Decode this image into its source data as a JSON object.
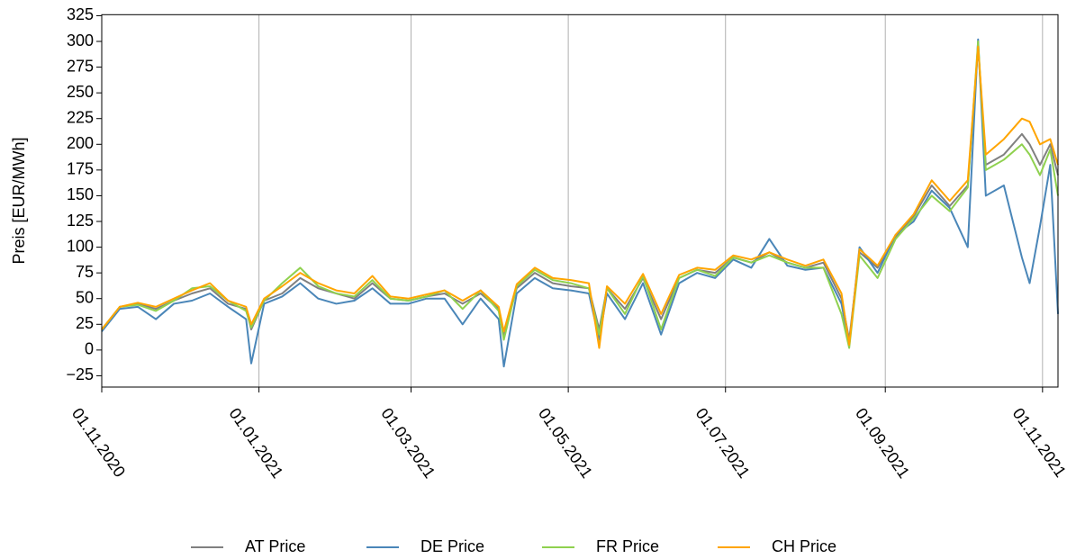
{
  "chart_data": {
    "type": "line",
    "y_label": "Preis [EUR/MWh]",
    "x": [
      "01.11.2020",
      "08.11.2020",
      "15.11.2020",
      "22.11.2020",
      "29.11.2020",
      "06.12.2020",
      "13.12.2020",
      "20.12.2020",
      "27.12.2020",
      "29.12.2020",
      "03.01.2021",
      "10.01.2021",
      "17.01.2021",
      "24.01.2021",
      "31.01.2021",
      "07.02.2021",
      "14.02.2021",
      "21.02.2021",
      "28.02.2021",
      "07.03.2021",
      "14.03.2021",
      "21.03.2021",
      "28.03.2021",
      "04.04.2021",
      "06.04.2021",
      "11.04.2021",
      "18.04.2021",
      "25.04.2021",
      "02.05.2021",
      "09.05.2021",
      "13.05.2021",
      "16.05.2021",
      "23.05.2021",
      "30.05.2021",
      "06.06.2021",
      "13.06.2021",
      "20.06.2021",
      "27.06.2021",
      "04.07.2021",
      "11.07.2021",
      "18.07.2021",
      "25.07.2021",
      "01.08.2021",
      "08.08.2021",
      "15.08.2021",
      "18.08.2021",
      "22.08.2021",
      "29.08.2021",
      "05.09.2021",
      "12.09.2021",
      "19.09.2021",
      "26.09.2021",
      "03.10.2021",
      "07.10.2021",
      "10.10.2021",
      "17.10.2021",
      "24.10.2021",
      "27.10.2021",
      "31.10.2021",
      "04.11.2021",
      "07.11.2021"
    ],
    "series": [
      {
        "name": "AT Price",
        "color": "#808080",
        "values": [
          20,
          42,
          45,
          40,
          48,
          55,
          60,
          45,
          40,
          20,
          48,
          55,
          70,
          60,
          55,
          50,
          65,
          50,
          48,
          52,
          55,
          45,
          55,
          40,
          15,
          60,
          75,
          65,
          62,
          60,
          20,
          60,
          40,
          70,
          30,
          70,
          78,
          75,
          90,
          85,
          95,
          85,
          80,
          85,
          50,
          10,
          95,
          80,
          110,
          130,
          160,
          140,
          160,
          295,
          180,
          190,
          210,
          200,
          180,
          200,
          170
        ]
      },
      {
        "name": "DE Price",
        "color": "#4a86b8",
        "values": [
          18,
          40,
          42,
          30,
          45,
          48,
          55,
          42,
          30,
          -13,
          45,
          52,
          65,
          50,
          45,
          48,
          60,
          45,
          45,
          50,
          50,
          25,
          50,
          30,
          -16,
          55,
          70,
          60,
          58,
          55,
          10,
          55,
          30,
          65,
          15,
          65,
          75,
          70,
          88,
          80,
          108,
          82,
          78,
          80,
          45,
          5,
          100,
          75,
          112,
          125,
          155,
          138,
          100,
          302,
          150,
          160,
          90,
          65,
          120,
          180,
          35
        ]
      },
      {
        "name": "FR Price",
        "color": "#8fd14f",
        "values": [
          20,
          42,
          44,
          38,
          48,
          60,
          62,
          48,
          38,
          22,
          48,
          65,
          80,
          62,
          55,
          52,
          68,
          50,
          48,
          52,
          58,
          40,
          58,
          38,
          10,
          62,
          78,
          68,
          65,
          60,
          15,
          60,
          35,
          72,
          20,
          70,
          78,
          72,
          90,
          85,
          92,
          85,
          80,
          80,
          35,
          2,
          92,
          70,
          108,
          128,
          150,
          135,
          158,
          300,
          175,
          185,
          200,
          190,
          170,
          195,
          150
        ]
      },
      {
        "name": "CH Price",
        "color": "#ffa500",
        "values": [
          20,
          42,
          46,
          42,
          50,
          58,
          65,
          48,
          42,
          25,
          50,
          62,
          75,
          65,
          58,
          55,
          72,
          52,
          50,
          54,
          58,
          48,
          58,
          42,
          18,
          64,
          80,
          70,
          68,
          65,
          2,
          62,
          45,
          74,
          35,
          73,
          80,
          78,
          92,
          88,
          95,
          88,
          82,
          88,
          55,
          5,
          98,
          82,
          112,
          132,
          165,
          145,
          165,
          295,
          190,
          205,
          225,
          222,
          200,
          205,
          180
        ]
      }
    ],
    "xlim": [
      "01.11.2020",
      "07.11.2021"
    ],
    "xticks": [
      "01.11.2020",
      "01.01.2021",
      "01.03.2021",
      "01.05.2021",
      "01.07.2021",
      "01.09.2021",
      "01.11.2021"
    ],
    "ylim": [
      -36,
      326
    ],
    "yticks": [
      {
        "value": -25,
        "label": "−25"
      },
      0,
      25,
      50,
      75,
      100,
      125,
      150,
      175,
      200,
      225,
      250,
      275,
      300,
      325
    ],
    "grid": "x",
    "legend": "bottom"
  }
}
